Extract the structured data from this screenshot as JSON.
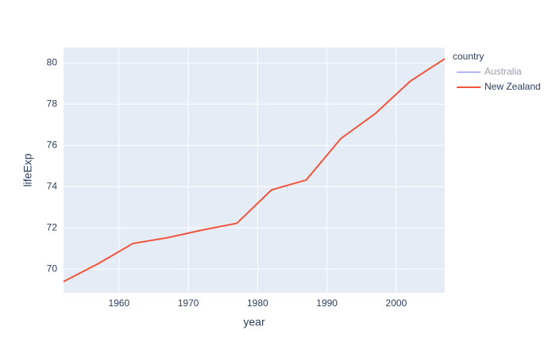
{
  "chart_data": {
    "type": "line",
    "x_label": "year",
    "y_label": "lifeExp",
    "legend_title": "country",
    "x": [
      1952,
      1957,
      1962,
      1967,
      1972,
      1977,
      1982,
      1987,
      1992,
      1997,
      2002,
      2007
    ],
    "series": [
      {
        "name": "Australia",
        "color": "#636efa",
        "visible": false
      },
      {
        "name": "New Zealand",
        "color": "#EF553B",
        "values": [
          69.39,
          70.26,
          71.24,
          71.52,
          71.89,
          72.22,
          73.84,
          74.32,
          76.33,
          77.55,
          79.11,
          80.204
        ]
      }
    ],
    "xlim": [
      1952,
      2007
    ],
    "xticks": [
      1960,
      1970,
      1980,
      1990,
      2000
    ],
    "ylim": [
      68.85,
      80.745
    ],
    "yticks": [
      70,
      72,
      74,
      76,
      78,
      80
    ],
    "grid": true,
    "legend": "right"
  }
}
